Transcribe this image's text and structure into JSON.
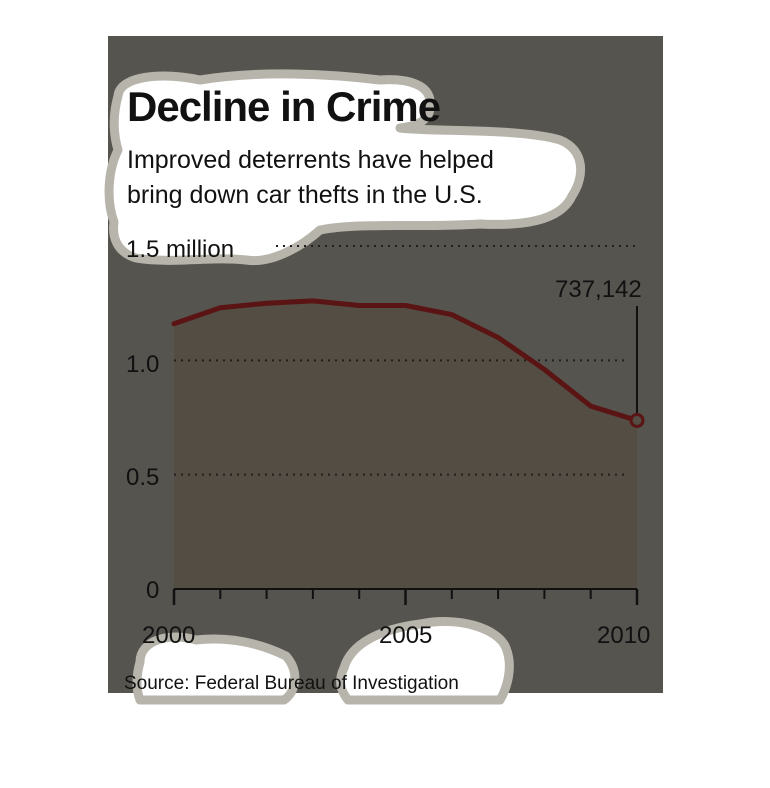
{
  "colors": {
    "panel": "#55544f",
    "area": "#544d43",
    "line": "#5a1414",
    "grid": "#1f1f1f",
    "text": "#111111",
    "highlight": "#ffffff",
    "highlight_border": "#b7b4ab"
  },
  "chart_data": {
    "type": "area",
    "title": "Decline in Crime",
    "subtitle_lines": [
      "Improved deterrents have helped",
      "bring down car thefts in the U.S."
    ],
    "source": "Source: Federal Bureau of Investigation",
    "x": [
      2000,
      2001,
      2002,
      2003,
      2004,
      2005,
      2006,
      2007,
      2008,
      2009,
      2010
    ],
    "values": [
      1.16,
      1.23,
      1.25,
      1.26,
      1.24,
      1.24,
      1.2,
      1.1,
      0.96,
      0.8,
      0.737142
    ],
    "xlim": [
      2000,
      2010
    ],
    "ylim": [
      0,
      1.5
    ],
    "y_ticks": [
      0,
      0.5,
      1.0,
      1.5
    ],
    "y_tick_labels": [
      "0",
      "0.5",
      "1.0",
      "1.5 million"
    ],
    "x_ticks_major": [
      2000,
      2005,
      2010
    ],
    "x_tick_labels": [
      "2000",
      "2005",
      "2010"
    ],
    "grid": "dotted-horizontal",
    "callout": {
      "x": 2010,
      "value": 0.737142,
      "label": "737,142"
    }
  }
}
